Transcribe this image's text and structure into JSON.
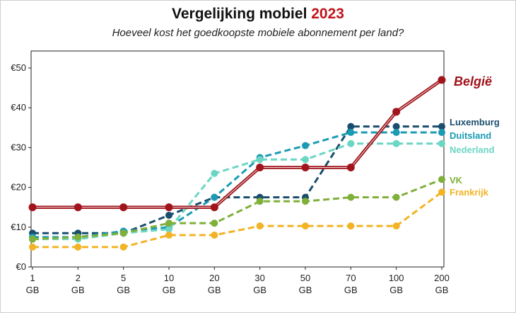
{
  "chart_data": {
    "type": "line",
    "title_prefix": "Vergelijking mobiel",
    "title_year": "2023",
    "subtitle": "Hoeveel kost het goedkoopste mobiele abonnement per land?",
    "categories": [
      "1",
      "2",
      "5",
      "10",
      "20",
      "30",
      "50",
      "70",
      "100",
      "200"
    ],
    "category_unit": "GB",
    "y_ticks": [
      "€0",
      "€10",
      "€20",
      "€30",
      "€40",
      "€50"
    ],
    "ylim": [
      0,
      50
    ],
    "series": [
      {
        "name": "Luxemburg",
        "color": "#1a4d6e",
        "style": "dashed",
        "values": [
          8.5,
          8.5,
          8.5,
          13,
          17.5,
          17.5,
          17.5,
          35.3,
          35.3,
          35.3
        ]
      },
      {
        "name": "Duitsland",
        "color": "#1a9bb3",
        "style": "dashed",
        "values": [
          7.5,
          7.5,
          9,
          10,
          17.5,
          27.5,
          30.5,
          33.8,
          33.8,
          33.8
        ]
      },
      {
        "name": "Nederland",
        "color": "#6bd6c4",
        "style": "dashed",
        "values": [
          7,
          7,
          8.5,
          9.5,
          23.5,
          27,
          27,
          31,
          31,
          31
        ]
      },
      {
        "name": "VK",
        "color": "#7fb03a",
        "style": "dashed",
        "values": [
          7,
          7.5,
          8.5,
          11,
          11,
          16.5,
          16.5,
          17.5,
          17.5,
          22
        ]
      },
      {
        "name": "Frankrijk",
        "color": "#f2b324",
        "style": "dashed",
        "values": [
          5,
          5,
          5,
          8,
          8,
          10.3,
          10.3,
          10.3,
          10.3,
          18.8
        ]
      },
      {
        "name": "België",
        "color": "#a0141b",
        "style": "solid",
        "values": [
          15,
          15,
          15,
          15,
          15,
          25,
          25,
          25,
          39,
          47
        ]
      }
    ]
  }
}
